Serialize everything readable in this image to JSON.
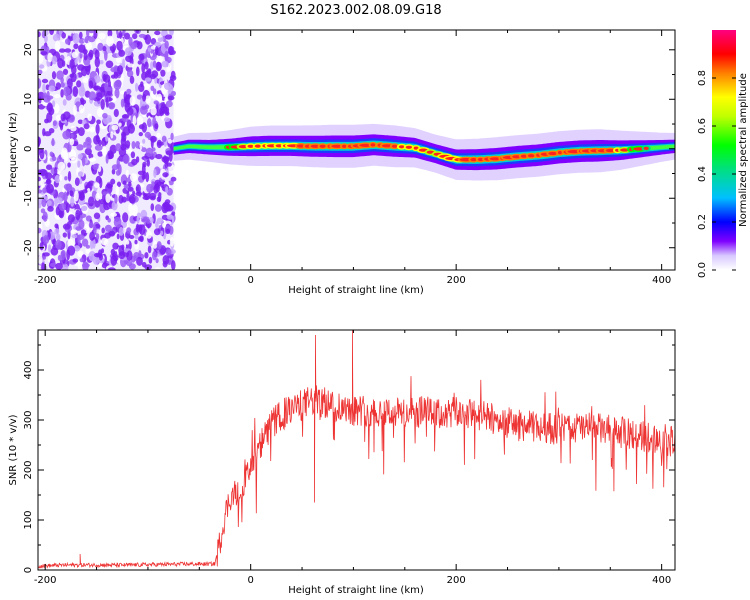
{
  "title": "S162.2023.002.08.09.G18",
  "chart_data": [
    {
      "type": "heatmap",
      "name": "spectrogram",
      "xlabel": "Height of straight line (km)",
      "ylabel": "Frequency (Hz)",
      "xlim": [
        -207,
        413
      ],
      "ylim": [
        -24.5,
        24
      ],
      "xticks": [
        -200,
        0,
        200,
        400
      ],
      "yticks": [
        -20,
        -10,
        0,
        10,
        20
      ],
      "colorbar": {
        "label": "Normalized spectral amplitude",
        "range": [
          0,
          1
        ],
        "ticks": [
          "0.0",
          "0.2",
          "0.4",
          "0.6",
          "0.8"
        ],
        "tick_values": [
          0,
          0.2,
          0.4,
          0.6,
          0.8
        ],
        "stops": [
          "#ffffff",
          "#7f00ff",
          "#0000ff",
          "#00c0ff",
          "#00ff40",
          "#ffff00",
          "#ff8000",
          "#ff0000",
          "#ff0080"
        ]
      },
      "noise_region_x": [
        -207,
        -75
      ],
      "ridge": {
        "x": [
          -75,
          -60,
          -40,
          -20,
          0,
          20,
          40,
          60,
          80,
          100,
          120,
          140,
          160,
          180,
          200,
          220,
          240,
          260,
          280,
          300,
          320,
          340,
          360,
          380,
          400,
          413
        ],
        "freq_hz": [
          0,
          0.5,
          0.3,
          0.3,
          0.5,
          0.6,
          0.6,
          0.5,
          0.5,
          0.5,
          0.8,
          0.5,
          0.2,
          -1.0,
          -2.2,
          -2.2,
          -2.0,
          -1.6,
          -1.3,
          -0.8,
          -0.5,
          -0.4,
          -0.3,
          0,
          0.3,
          0.5
        ],
        "amplitude": [
          0.2,
          0.3,
          0.4,
          0.6,
          0.8,
          0.85,
          0.85,
          0.9,
          0.95,
          0.95,
          0.9,
          0.9,
          0.8,
          0.75,
          0.85,
          0.9,
          0.95,
          0.95,
          0.95,
          0.95,
          0.95,
          0.95,
          0.8,
          0.6,
          0.4,
          0.3
        ]
      }
    },
    {
      "type": "line",
      "name": "snr",
      "xlabel": "Height of straight line (km)",
      "ylabel": "SNR (10 * v/v)",
      "xlim": [
        -207,
        413
      ],
      "ylim": [
        0,
        480
      ],
      "xticks": [
        -200,
        0,
        200,
        400
      ],
      "yticks": [
        0,
        100,
        200,
        300,
        400
      ],
      "color": "#ee3333",
      "series": [
        {
          "x": [
            -207,
            -180,
            -150,
            -120,
            -90,
            -60,
            -35,
            -30,
            -25,
            -20,
            -10,
            0,
            10,
            20,
            30,
            40,
            50,
            60,
            70,
            80,
            90,
            100,
            110,
            120,
            130,
            140,
            150,
            160,
            170,
            180,
            190,
            200,
            220,
            240,
            260,
            280,
            300,
            320,
            340,
            360,
            380,
            400,
            413
          ],
          "y": [
            8,
            10,
            10,
            10,
            11,
            12,
            12,
            55,
            110,
            145,
            165,
            200,
            250,
            290,
            310,
            320,
            330,
            340,
            335,
            330,
            325,
            320,
            320,
            315,
            318,
            315,
            315,
            312,
            318,
            310,
            312,
            315,
            310,
            300,
            290,
            285,
            282,
            285,
            282,
            275,
            268,
            262,
            255
          ]
        }
      ],
      "spikes": [
        {
          "x": 63,
          "y": 470
        },
        {
          "x": 62,
          "y": 135
        },
        {
          "x": 99,
          "y": 480
        },
        {
          "x": -166,
          "y": 32
        }
      ]
    }
  ]
}
